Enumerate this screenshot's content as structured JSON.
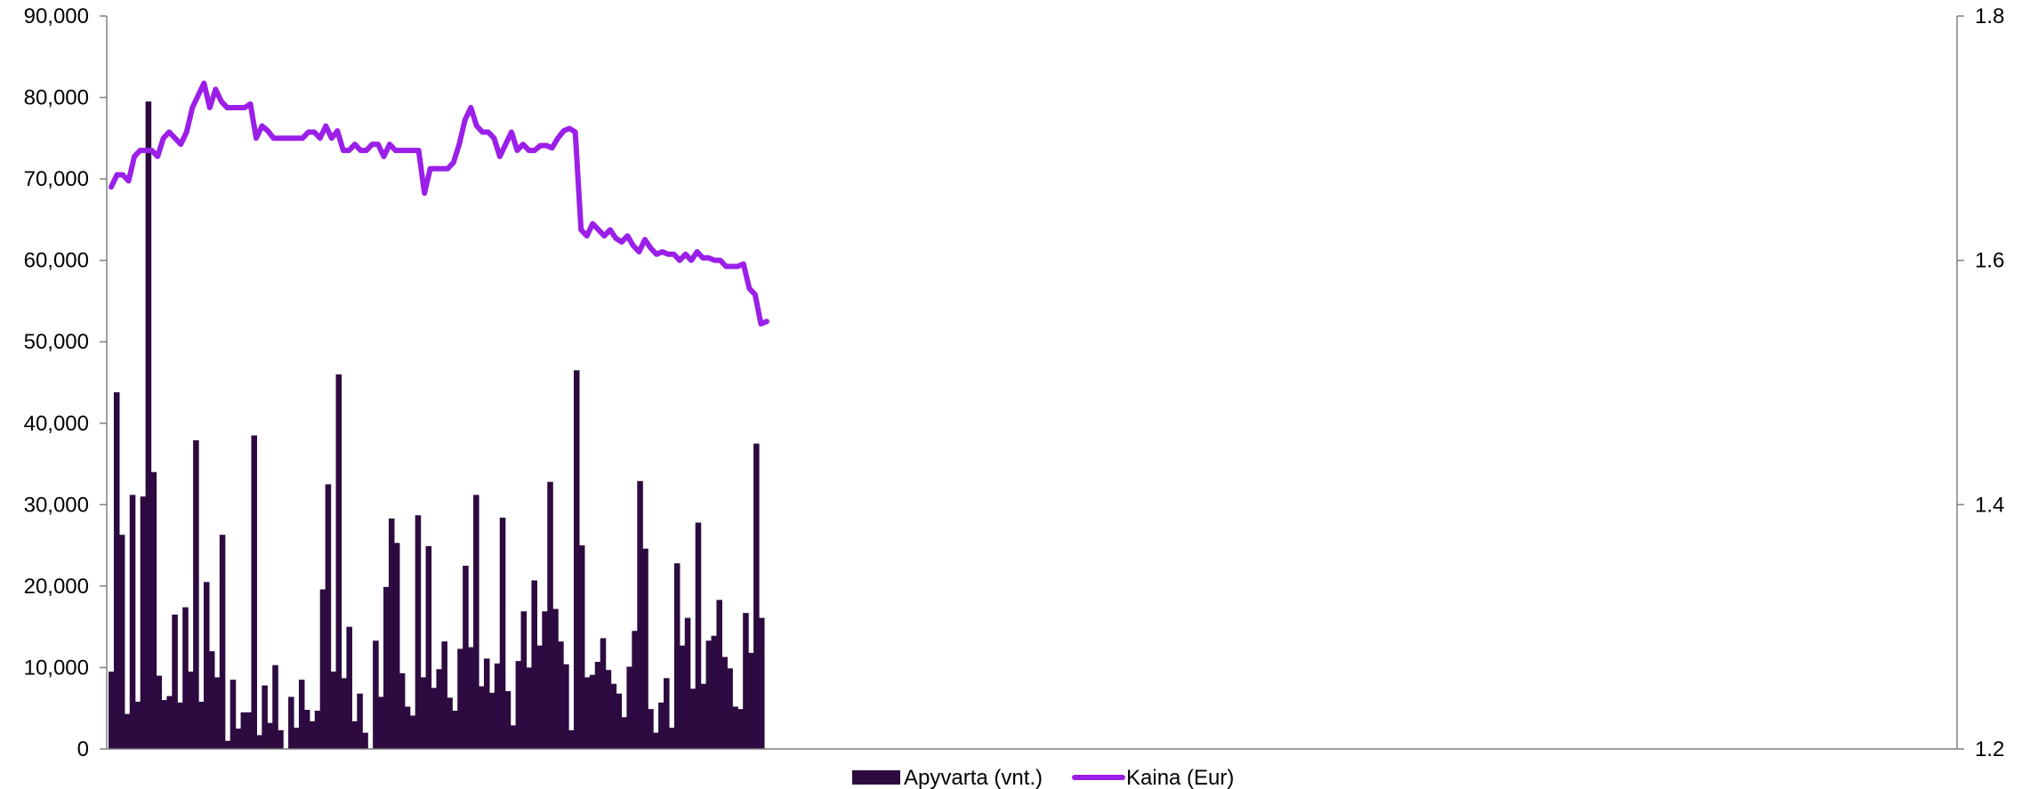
{
  "chart_data": {
    "type": "bar+line",
    "title": "",
    "xlabel": "",
    "ylabel": "",
    "ylim": [
      0,
      90000
    ],
    "y2lim": [
      1.2,
      1.8
    ],
    "y_ticks": [
      "0",
      "10,000",
      "20,000",
      "30,000",
      "40,000",
      "50,000",
      "60,000",
      "70,000",
      "80,000",
      "90,000"
    ],
    "y2_ticks": [
      "1.2",
      "1.4",
      "1.6",
      "1.8"
    ],
    "x_slots": 350,
    "grid": false,
    "legend": "bottom-center",
    "colors": {
      "bars": "#2d0a40",
      "line": "#9b1fe8",
      "axis": "#808080"
    },
    "series": [
      {
        "name": "Apyvarta (vnt.)",
        "type": "bar",
        "axis": "left",
        "values": [
          9500,
          43800,
          26300,
          4300,
          31200,
          5800,
          31000,
          79500,
          34000,
          9000,
          6000,
          6500,
          16500,
          5700,
          17400,
          9500,
          37900,
          5800,
          20500,
          12000,
          8800,
          26300,
          1000,
          8500,
          2500,
          4500,
          4500,
          38500,
          1700,
          7800,
          3200,
          10300,
          2300,
          0,
          6400,
          2600,
          8500,
          4800,
          3400,
          4700,
          19600,
          32500,
          9500,
          46000,
          8700,
          15000,
          3400,
          6800,
          2000,
          0,
          13300,
          6400,
          19900,
          28300,
          25300,
          9300,
          5200,
          4100,
          28700,
          8800,
          24900,
          7500,
          9800,
          13200,
          6300,
          4700,
          12300,
          22500,
          12500,
          31200,
          7700,
          11100,
          6900,
          10500,
          28400,
          7100,
          2900,
          10800,
          16900,
          10000,
          20700,
          12700,
          16900,
          32800,
          17200,
          13200,
          10400,
          2300,
          46500,
          25000,
          8800,
          9100,
          10700,
          13600,
          9700,
          8000,
          6800,
          3900,
          10100,
          14500,
          32900,
          24600,
          4900,
          2000,
          5700,
          8700,
          2600,
          22800,
          12700,
          16100,
          7400,
          27800,
          8000,
          13300,
          13900,
          18300,
          11300,
          9900,
          5200,
          4900,
          16700,
          11800,
          37500,
          16100
        ]
      },
      {
        "name": "Kaina (Eur)",
        "type": "line",
        "axis": "right",
        "values": [
          1.66,
          1.67,
          1.67,
          1.665,
          1.685,
          1.69,
          1.69,
          1.69,
          1.685,
          1.7,
          1.705,
          1.7,
          1.695,
          1.705,
          1.725,
          1.735,
          1.745,
          1.725,
          1.74,
          1.73,
          1.725,
          1.725,
          1.725,
          1.725,
          1.728,
          1.7,
          1.71,
          1.706,
          1.7,
          1.7,
          1.7,
          1.7,
          1.7,
          1.7,
          1.705,
          1.705,
          1.7,
          1.71,
          1.7,
          1.706,
          1.69,
          1.69,
          1.695,
          1.69,
          1.69,
          1.695,
          1.695,
          1.685,
          1.695,
          1.69,
          1.69,
          1.69,
          1.69,
          1.69,
          1.655,
          1.675,
          1.675,
          1.675,
          1.675,
          1.68,
          1.695,
          1.715,
          1.725,
          1.71,
          1.705,
          1.705,
          1.7,
          1.685,
          1.695,
          1.705,
          1.69,
          1.695,
          1.69,
          1.69,
          1.694,
          1.694,
          1.692,
          1.7,
          1.706,
          1.708,
          1.705,
          1.625,
          1.62,
          1.63,
          1.625,
          1.62,
          1.625,
          1.618,
          1.615,
          1.62,
          1.612,
          1.607,
          1.617,
          1.61,
          1.605,
          1.607,
          1.605,
          1.605,
          1.6,
          1.605,
          1.6,
          1.607,
          1.602,
          1.602,
          1.6,
          1.6,
          1.595,
          1.595,
          1.595,
          1.597,
          1.577,
          1.572,
          1.548,
          1.55
        ]
      }
    ]
  }
}
